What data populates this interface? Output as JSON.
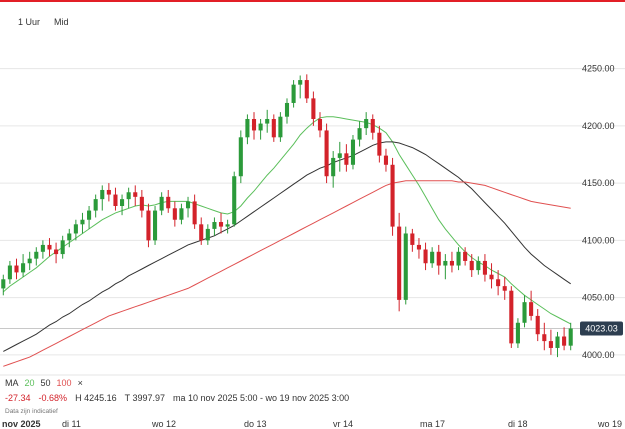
{
  "colors": {
    "accent": "#e21f26",
    "up": "#2b9a3a",
    "down": "#d3222a",
    "ma20": "#5bbf5b",
    "ma50": "#333333",
    "ma100": "#e05050",
    "grid": "#e6e6e6",
    "price_label_bg": "#2d3e50"
  },
  "timeframes": [
    "1 Uur",
    "Mid"
  ],
  "legend": {
    "title": "MA",
    "ma20": "20",
    "ma50": "50",
    "ma100": "100",
    "close_symbol": "×"
  },
  "stats": {
    "change": "-27.34",
    "change_pct": "-0.68%",
    "high": "H 4245.16",
    "low": "T 3997.97",
    "range": "ma 10 nov 2025 5:00 - wo 19 nov 2025 3:00"
  },
  "note": "Data zijn indicatief",
  "current_price_label": "4023.03",
  "chart_data": {
    "type": "candlestick",
    "ylim": [
      3985,
      4275
    ],
    "y_ticks": [
      4000,
      4050,
      4100,
      4150,
      4200,
      4250
    ],
    "y_tick_labels": [
      "4000.00",
      "4050.00",
      "4100.00",
      "4150.00",
      "4200.00",
      "4250.00"
    ],
    "x_labels": [
      "nov 2025",
      "di 11",
      "wo 12",
      "do 13",
      "vr 14",
      "ma 17",
      "di 18",
      "wo 19"
    ],
    "current_price": 4023.03,
    "ohlc": [
      [
        4058,
        4070,
        4052,
        4066
      ],
      [
        4066,
        4082,
        4062,
        4078
      ],
      [
        4078,
        4084,
        4066,
        4072
      ],
      [
        4072,
        4088,
        4068,
        4080
      ],
      [
        4080,
        4090,
        4074,
        4084
      ],
      [
        4084,
        4094,
        4078,
        4090
      ],
      [
        4090,
        4100,
        4084,
        4096
      ],
      [
        4096,
        4102,
        4086,
        4092
      ],
      [
        4092,
        4098,
        4080,
        4088
      ],
      [
        4088,
        4104,
        4084,
        4100
      ],
      [
        4100,
        4110,
        4094,
        4106
      ],
      [
        4106,
        4118,
        4100,
        4114
      ],
      [
        4114,
        4124,
        4106,
        4118
      ],
      [
        4118,
        4130,
        4110,
        4126
      ],
      [
        4126,
        4140,
        4120,
        4136
      ],
      [
        4136,
        4148,
        4126,
        4144
      ],
      [
        4144,
        4150,
        4134,
        4140
      ],
      [
        4140,
        4146,
        4126,
        4130
      ],
      [
        4130,
        4140,
        4122,
        4136
      ],
      [
        4136,
        4146,
        4128,
        4142
      ],
      [
        4142,
        4148,
        4130,
        4138
      ],
      [
        4138,
        4144,
        4120,
        4126
      ],
      [
        4126,
        4132,
        4094,
        4100
      ],
      [
        4100,
        4130,
        4096,
        4126
      ],
      [
        4126,
        4142,
        4122,
        4138
      ],
      [
        4138,
        4144,
        4124,
        4128
      ],
      [
        4128,
        4134,
        4112,
        4118
      ],
      [
        4118,
        4132,
        4114,
        4128
      ],
      [
        4128,
        4138,
        4120,
        4134
      ],
      [
        4134,
        4140,
        4110,
        4114
      ],
      [
        4114,
        4120,
        4096,
        4100
      ],
      [
        4100,
        4114,
        4096,
        4110
      ],
      [
        4110,
        4120,
        4104,
        4116
      ],
      [
        4116,
        4124,
        4106,
        4112
      ],
      [
        4112,
        4118,
        4106,
        4114
      ],
      [
        4114,
        4160,
        4112,
        4156
      ],
      [
        4156,
        4196,
        4150,
        4190
      ],
      [
        4190,
        4210,
        4184,
        4206
      ],
      [
        4206,
        4212,
        4188,
        4196
      ],
      [
        4196,
        4206,
        4188,
        4202
      ],
      [
        4202,
        4214,
        4194,
        4206
      ],
      [
        4206,
        4210,
        4186,
        4190
      ],
      [
        4190,
        4212,
        4186,
        4208
      ],
      [
        4208,
        4224,
        4202,
        4220
      ],
      [
        4220,
        4240,
        4216,
        4236
      ],
      [
        4236,
        4244,
        4224,
        4240
      ],
      [
        4240,
        4245,
        4220,
        4224
      ],
      [
        4224,
        4230,
        4200,
        4206
      ],
      [
        4206,
        4212,
        4190,
        4196
      ],
      [
        4196,
        4202,
        4150,
        4156
      ],
      [
        4156,
        4178,
        4146,
        4172
      ],
      [
        4172,
        4186,
        4160,
        4176
      ],
      [
        4176,
        4184,
        4160,
        4166
      ],
      [
        4166,
        4192,
        4162,
        4188
      ],
      [
        4188,
        4204,
        4182,
        4198
      ],
      [
        4198,
        4212,
        4192,
        4206
      ],
      [
        4206,
        4210,
        4188,
        4194
      ],
      [
        4194,
        4200,
        4168,
        4174
      ],
      [
        4174,
        4180,
        4160,
        4166
      ],
      [
        4166,
        4172,
        4104,
        4112
      ],
      [
        4112,
        4124,
        4038,
        4048
      ],
      [
        4048,
        4112,
        4044,
        4106
      ],
      [
        4106,
        4110,
        4090,
        4096
      ],
      [
        4096,
        4102,
        4084,
        4092
      ],
      [
        4092,
        4098,
        4074,
        4080
      ],
      [
        4080,
        4094,
        4076,
        4090
      ],
      [
        4090,
        4096,
        4070,
        4078
      ],
      [
        4078,
        4088,
        4066,
        4082
      ],
      [
        4082,
        4090,
        4072,
        4078
      ],
      [
        4078,
        4094,
        4074,
        4090
      ],
      [
        4090,
        4094,
        4078,
        4082
      ],
      [
        4082,
        4088,
        4068,
        4074
      ],
      [
        4074,
        4086,
        4070,
        4082
      ],
      [
        4082,
        4088,
        4064,
        4070
      ],
      [
        4070,
        4080,
        4058,
        4066
      ],
      [
        4066,
        4074,
        4052,
        4060
      ],
      [
        4060,
        4068,
        4048,
        4056
      ],
      [
        4056,
        4060,
        4006,
        4010
      ],
      [
        4010,
        4032,
        4006,
        4028
      ],
      [
        4028,
        4052,
        4024,
        4046
      ],
      [
        4046,
        4056,
        4030,
        4034
      ],
      [
        4034,
        4040,
        4012,
        4018
      ],
      [
        4018,
        4028,
        4004,
        4012
      ],
      [
        4012,
        4022,
        4000,
        4006
      ],
      [
        4006,
        4020,
        3998,
        4016
      ],
      [
        4016,
        4024,
        4004,
        4008
      ],
      [
        4008,
        4028,
        4004,
        4023
      ]
    ],
    "series": [
      {
        "name": "20",
        "values": [
          4055,
          4060,
          4064,
          4068,
          4072,
          4076,
          4081,
          4086,
          4090,
          4094,
          4098,
          4102,
          4106,
          4110,
          4114,
          4118,
          4121,
          4124,
          4126,
          4128,
          4130,
          4131,
          4130,
          4131,
          4133,
          4134,
          4134,
          4134,
          4134,
          4132,
          4130,
          4128,
          4126,
          4124,
          4123,
          4125,
          4130,
          4137,
          4143,
          4150,
          4157,
          4163,
          4170,
          4177,
          4184,
          4192,
          4198,
          4203,
          4207,
          4208,
          4208,
          4207,
          4206,
          4205,
          4204,
          4203,
          4201,
          4198,
          4194,
          4186,
          4175,
          4166,
          4157,
          4148,
          4138,
          4128,
          4118,
          4110,
          4103,
          4096,
          4090,
          4085,
          4081,
          4078,
          4074,
          4071,
          4068,
          4062,
          4057,
          4052,
          4048,
          4044,
          4040,
          4036,
          4033,
          4030,
          4027
        ]
      },
      {
        "name": "50",
        "values": [
          4003,
          4006,
          4009,
          4012,
          4015,
          4018,
          4022,
          4026,
          4029,
          4033,
          4036,
          4040,
          4044,
          4047,
          4051,
          4055,
          4058,
          4062,
          4065,
          4069,
          4072,
          4075,
          4078,
          4081,
          4084,
          4087,
          4090,
          4093,
          4096,
          4098,
          4100,
          4102,
          4104,
          4107,
          4110,
          4113,
          4117,
          4121,
          4125,
          4129,
          4133,
          4137,
          4141,
          4145,
          4149,
          4153,
          4157,
          4160,
          4163,
          4165,
          4168,
          4170,
          4172,
          4174,
          4177,
          4180,
          4183,
          4185,
          4186,
          4186,
          4185,
          4183,
          4181,
          4178,
          4175,
          4171,
          4167,
          4163,
          4159,
          4155,
          4150,
          4145,
          4139,
          4133,
          4127,
          4121,
          4115,
          4108,
          4101,
          4094,
          4088,
          4083,
          4078,
          4074,
          4070,
          4066,
          4062
        ]
      },
      {
        "name": "100",
        "values": [
          3990,
          3992,
          3994,
          3996,
          3998,
          4001,
          4004,
          4007,
          4010,
          4013,
          4016,
          4019,
          4022,
          4025,
          4028,
          4031,
          4034,
          4036,
          4038,
          4040,
          4042,
          4044,
          4046,
          4048,
          4050,
          4052,
          4054,
          4056,
          4058,
          4061,
          4064,
          4067,
          4070,
          4073,
          4076,
          4079,
          4082,
          4085,
          4088,
          4091,
          4094,
          4097,
          4100,
          4103,
          4106,
          4109,
          4112,
          4115,
          4118,
          4121,
          4124,
          4127,
          4130,
          4133,
          4136,
          4139,
          4142,
          4145,
          4148,
          4150,
          4151,
          4152,
          4152,
          4152,
          4152,
          4152,
          4152,
          4152,
          4152,
          4151,
          4151,
          4150,
          4149,
          4148,
          4146,
          4144,
          4142,
          4140,
          4138,
          4136,
          4134,
          4133,
          4132,
          4131,
          4130,
          4129,
          4128
        ]
      }
    ]
  }
}
